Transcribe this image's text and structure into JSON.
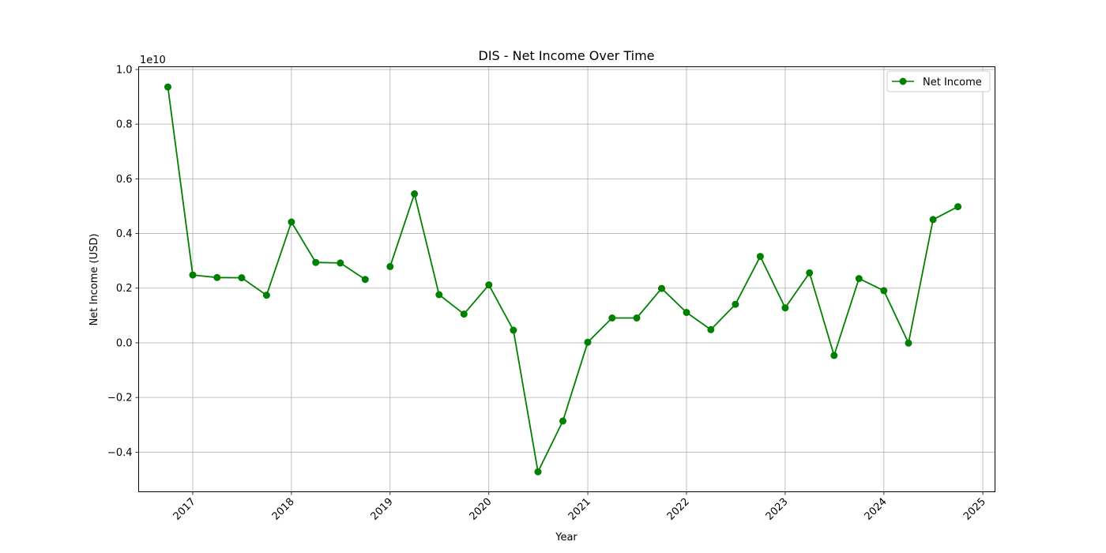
{
  "chart_data": {
    "type": "line",
    "title": "DIS - Net Income Over Time",
    "xlabel": "Year",
    "ylabel": "Net Income (USD)",
    "y_offset_text": "1e10",
    "x_tick_labels": [
      "2017",
      "2018",
      "2019",
      "2020",
      "2021",
      "2022",
      "2023",
      "2024",
      "2025"
    ],
    "y_tick_labels": [
      "−0.4",
      "−0.2",
      "0.0",
      "0.2",
      "0.4",
      "0.6",
      "0.8",
      "1.0"
    ],
    "y_tick_values": [
      -0.4,
      -0.2,
      0.0,
      0.2,
      0.4,
      0.6,
      0.8,
      1.0
    ],
    "xlim": [
      "2016-06-15",
      "2025-02-15"
    ],
    "ylim": [
      -0.545,
      1.01
    ],
    "y_scale": 10000000000.0,
    "grid": true,
    "legend_position": "top-right",
    "series": [
      {
        "name": "Net Income",
        "color": "#008000",
        "marker": "circle",
        "x": [
          "2016-10-01",
          "2017-01-01",
          "2017-04-01",
          "2017-07-01",
          "2017-10-01",
          "2018-01-01",
          "2018-04-01",
          "2018-07-01",
          "2018-10-01",
          "2019-01-01",
          "2019-04-01",
          "2019-07-01",
          "2019-10-01",
          "2020-01-01",
          "2020-04-01",
          "2020-07-01",
          "2020-10-01",
          "2021-01-01",
          "2021-04-01",
          "2021-07-01",
          "2021-10-01",
          "2022-01-01",
          "2022-04-01",
          "2022-07-01",
          "2022-10-01",
          "2023-01-01",
          "2023-04-01",
          "2023-07-01",
          "2023-10-01",
          "2024-01-01",
          "2024-04-01",
          "2024-07-01",
          "2024-10-01"
        ],
        "y": [
          0.936,
          0.248,
          0.239,
          0.238,
          0.174,
          0.442,
          0.294,
          0.292,
          0.232,
          0.279,
          0.545,
          0.176,
          0.105,
          0.212,
          0.046,
          -0.472,
          -0.286,
          0.002,
          0.091,
          0.091,
          0.199,
          0.111,
          0.048,
          0.141,
          0.316,
          0.128,
          0.256,
          -0.046,
          0.235,
          0.191,
          -0.001,
          0.451,
          0.498
        ],
        "breaks_after": [
          "2018-10-01"
        ]
      }
    ]
  }
}
